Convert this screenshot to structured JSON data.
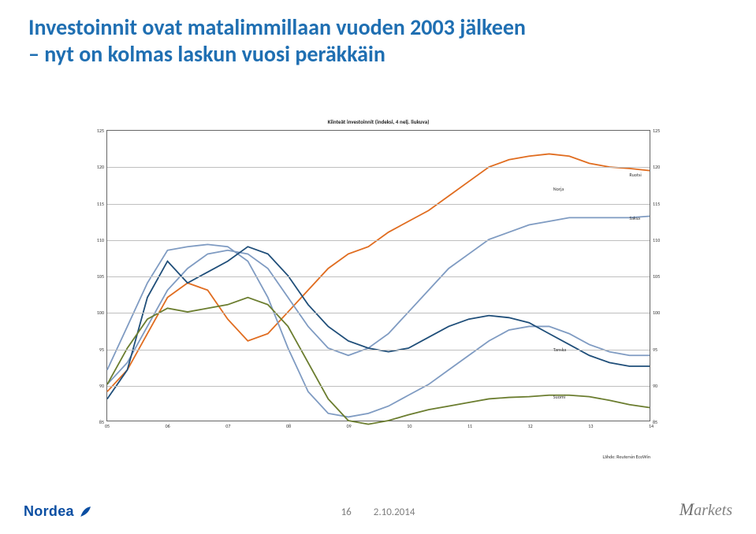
{
  "title_line1": "Investoinnit ovat matalimmillaan vuoden 2003 jälkeen",
  "title_line2": "– nyt on kolmas laskun vuosi peräkkäin",
  "title_fontsize": 28,
  "chart": {
    "title": "Kiinteät investoinnit (indeksi, 4 nelj. liukuva)",
    "title_fontsize": 7,
    "ylim": [
      85,
      125
    ],
    "ytick_step": 5,
    "xcats": [
      "05",
      "06",
      "07",
      "08",
      "09",
      "10",
      "11",
      "12",
      "13",
      "14"
    ],
    "xcount": 10,
    "grid_color": "#bfbfbf",
    "border_color": "#666666",
    "background": "#ffffff",
    "line_width": 1.8,
    "series": [
      {
        "name": "Ruotsi",
        "color": "#e06c1f",
        "label_x": 0.96,
        "label_y": 119,
        "data": [
          89,
          92,
          97,
          102,
          104,
          103,
          99,
          96,
          97,
          100,
          103,
          106,
          108,
          109,
          111,
          112.5,
          114,
          116,
          118,
          120,
          121,
          121.5,
          121.8,
          121.5,
          120.5,
          120,
          119.8,
          119.5
        ]
      },
      {
        "name": "Saksa",
        "color": "#7f9bc2",
        "label_x": 0.96,
        "label_y": 113,
        "data": [
          90,
          93,
          98,
          103,
          106,
          108,
          108.5,
          108,
          106,
          102,
          98,
          95,
          94,
          95,
          97,
          100,
          103,
          106,
          108,
          110,
          111,
          112,
          112.5,
          113,
          113,
          113,
          113,
          113.2
        ]
      },
      {
        "name": "Tanska",
        "color": "#7f9bc2",
        "label_x": 0.82,
        "label_y": 95,
        "data": [
          92,
          98,
          104,
          108.5,
          109,
          109.3,
          109,
          107,
          102,
          95,
          89,
          86,
          85.5,
          86,
          87,
          88.5,
          90,
          92,
          94,
          96,
          97.5,
          98,
          98,
          97,
          95.5,
          94.5,
          94,
          94
        ]
      },
      {
        "name": "Norja",
        "color": "#1f4e79",
        "label_x": 0.82,
        "label_y": 117,
        "data": [
          88,
          92,
          102,
          107,
          104,
          105.5,
          107,
          109,
          108,
          105,
          101,
          98,
          96,
          95,
          94.5,
          95,
          96.5,
          98,
          99,
          99.5,
          99.2,
          98.5,
          97,
          95.5,
          94,
          93,
          92.5,
          92.5
        ]
      },
      {
        "name": "Suomi",
        "color": "#6b7d2f",
        "label_x": 0.82,
        "label_y": 88.5,
        "data": [
          90,
          95,
          99,
          100.5,
          100,
          100.5,
          101,
          102,
          101,
          98,
          93,
          88,
          85,
          84.5,
          85,
          85.8,
          86.5,
          87,
          87.5,
          88,
          88.2,
          88.3,
          88.5,
          88.5,
          88.3,
          87.8,
          87.2,
          86.8
        ]
      }
    ],
    "source": "Lähde: Reutersin EcoWin"
  },
  "footer": {
    "page": "16",
    "date": "2.10.2014",
    "brand": "Nordea",
    "right": "Markets"
  }
}
